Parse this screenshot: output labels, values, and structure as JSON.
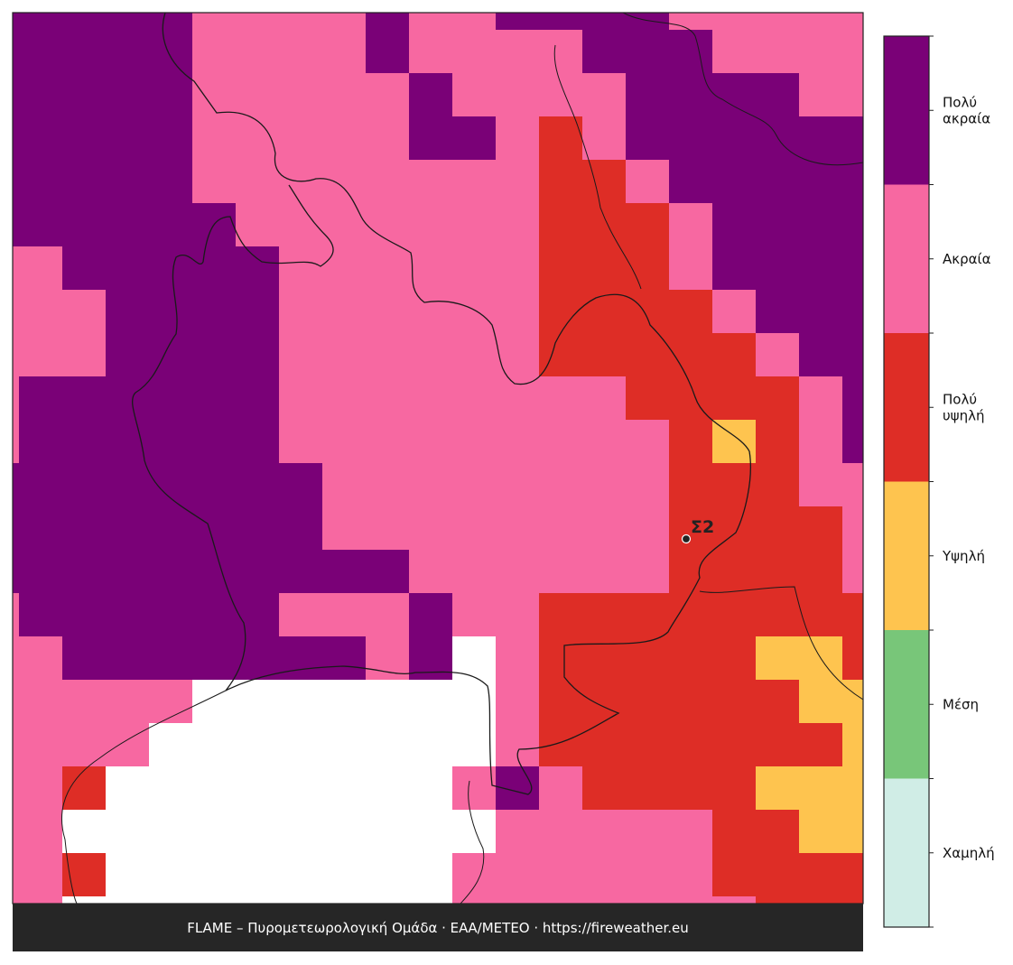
{
  "map": {
    "grid": [
      [
        5,
        5,
        5,
        5,
        5,
        4,
        4,
        4,
        4,
        5,
        4,
        4,
        5,
        5,
        5,
        5,
        4,
        4,
        4,
        4,
        4
      ],
      [
        5,
        5,
        5,
        5,
        5,
        4,
        4,
        4,
        4,
        5,
        4,
        4,
        4,
        4,
        5,
        5,
        5,
        4,
        4,
        4,
        4
      ],
      [
        5,
        5,
        5,
        5,
        5,
        4,
        4,
        4,
        4,
        4,
        5,
        4,
        4,
        4,
        4,
        5,
        5,
        5,
        5,
        4,
        4
      ],
      [
        5,
        5,
        5,
        5,
        5,
        4,
        4,
        4,
        4,
        4,
        5,
        5,
        4,
        3,
        4,
        5,
        5,
        5,
        5,
        5,
        5
      ],
      [
        5,
        5,
        5,
        5,
        5,
        4,
        4,
        4,
        4,
        4,
        4,
        4,
        4,
        3,
        3,
        4,
        5,
        5,
        5,
        5,
        5
      ],
      [
        5,
        5,
        5,
        5,
        5,
        5,
        4,
        4,
        4,
        4,
        4,
        4,
        4,
        3,
        3,
        3,
        4,
        5,
        5,
        5,
        5
      ],
      [
        4,
        4,
        5,
        5,
        5,
        5,
        5,
        4,
        4,
        4,
        4,
        4,
        4,
        3,
        3,
        3,
        4,
        5,
        5,
        5,
        5
      ],
      [
        4,
        4,
        4,
        5,
        5,
        5,
        5,
        4,
        4,
        4,
        4,
        4,
        4,
        3,
        3,
        3,
        3,
        4,
        5,
        5,
        5
      ],
      [
        4,
        4,
        4,
        5,
        5,
        5,
        5,
        4,
        4,
        4,
        4,
        4,
        4,
        3,
        3,
        3,
        3,
        3,
        4,
        5,
        5
      ],
      [
        4,
        5,
        5,
        5,
        5,
        5,
        5,
        4,
        4,
        4,
        4,
        4,
        4,
        4,
        4,
        3,
        3,
        3,
        3,
        4,
        5
      ],
      [
        4,
        5,
        5,
        5,
        5,
        5,
        5,
        4,
        4,
        4,
        4,
        4,
        4,
        4,
        4,
        4,
        3,
        2,
        3,
        4,
        5
      ],
      [
        5,
        5,
        5,
        5,
        5,
        5,
        5,
        5,
        4,
        4,
        4,
        4,
        4,
        4,
        4,
        4,
        3,
        3,
        3,
        4,
        4
      ],
      [
        5,
        5,
        5,
        5,
        5,
        5,
        5,
        5,
        4,
        4,
        4,
        4,
        4,
        4,
        4,
        4,
        3,
        3,
        3,
        3,
        4
      ],
      [
        5,
        5,
        5,
        5,
        5,
        5,
        5,
        5,
        5,
        5,
        4,
        4,
        4,
        4,
        4,
        4,
        3,
        3,
        3,
        3,
        4
      ],
      [
        4,
        5,
        5,
        5,
        5,
        5,
        5,
        4,
        4,
        4,
        5,
        4,
        4,
        3,
        3,
        3,
        3,
        3,
        3,
        3,
        3
      ],
      [
        4,
        4,
        5,
        5,
        5,
        5,
        5,
        5,
        5,
        4,
        5,
        null,
        4,
        3,
        3,
        3,
        3,
        3,
        2,
        2,
        3
      ],
      [
        4,
        4,
        4,
        4,
        4,
        null,
        null,
        null,
        null,
        null,
        null,
        null,
        4,
        3,
        3,
        3,
        3,
        3,
        3,
        2,
        2
      ],
      [
        4,
        4,
        4,
        4,
        null,
        null,
        null,
        null,
        null,
        null,
        null,
        null,
        4,
        3,
        3,
        3,
        3,
        3,
        3,
        3,
        2
      ],
      [
        4,
        4,
        3,
        null,
        null,
        null,
        null,
        null,
        null,
        null,
        null,
        4,
        5,
        4,
        3,
        3,
        3,
        3,
        2,
        2,
        2
      ],
      [
        4,
        4,
        null,
        null,
        null,
        null,
        null,
        null,
        null,
        null,
        null,
        null,
        4,
        4,
        4,
        4,
        4,
        3,
        3,
        2,
        2
      ],
      [
        4,
        4,
        3,
        null,
        null,
        null,
        null,
        null,
        null,
        null,
        null,
        4,
        4,
        4,
        4,
        4,
        4,
        3,
        3,
        3,
        3
      ],
      [
        4,
        4,
        null,
        null,
        null,
        null,
        null,
        null,
        null,
        null,
        null,
        4,
        4,
        4,
        4,
        4,
        4,
        4,
        3,
        3,
        3
      ]
    ],
    "station": {
      "label": "Σ2"
    }
  },
  "legend": {
    "categories": [
      {
        "label": "Χαμηλή",
        "color": "#d0ede6"
      },
      {
        "label": "Μέση",
        "color": "#78c679"
      },
      {
        "label": "Υψηλή",
        "color": "#fec44f"
      },
      {
        "label": "Πολύ\nυψηλή",
        "color": "#de2d26"
      },
      {
        "label": "Ακραία",
        "color": "#f768a1"
      },
      {
        "label": "Πολύ\nακραία",
        "color": "#7a0177"
      }
    ]
  },
  "footer": "FLAME – Πυρομετεωρολογική Ομάδα · ΕΑΑ/METEO · https://fireweather.eu"
}
